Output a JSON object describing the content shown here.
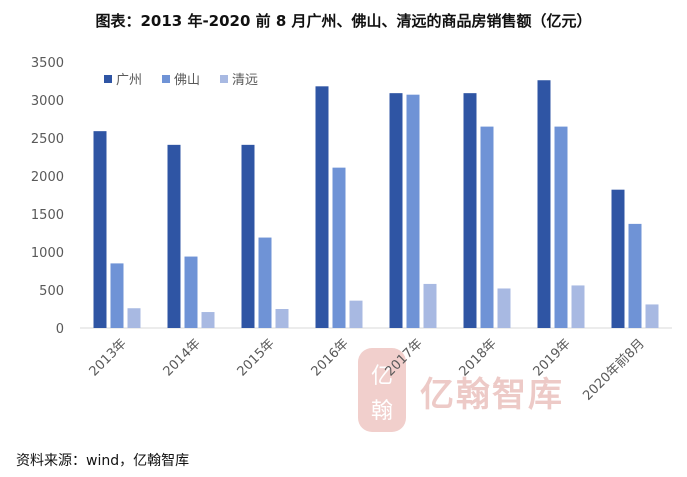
{
  "page": {
    "title": "图表：2013 年-2020 前 8 月广州、佛山、清远的商品房销售额（亿元）",
    "source": "资料来源：wind，亿翰智库",
    "watermark": "亿翰智库",
    "watermark_seal": "亿翰"
  },
  "chart_data": {
    "type": "bar",
    "title": "图表：2013 年-2020 前 8 月广州、佛山、清远的商品房销售额（亿元）",
    "xlabel": "",
    "ylabel": "",
    "categories": [
      "2013年",
      "2014年",
      "2015年",
      "2016年",
      "2017年",
      "2018年",
      "2019年",
      "2020年前8月"
    ],
    "yticks": [
      "0",
      "500",
      "1000",
      "1500",
      "2000",
      "2500",
      "3000",
      "3500"
    ],
    "ylim": [
      0,
      3500
    ],
    "grid": false,
    "legend": "top-left",
    "series": [
      {
        "name": "广州",
        "color": "#2f55a4",
        "values": [
          2590,
          2410,
          2410,
          3180,
          3090,
          3090,
          3260,
          1820
        ]
      },
      {
        "name": "佛山",
        "color": "#6f93d6",
        "values": [
          850,
          940,
          1190,
          2110,
          3070,
          2650,
          2650,
          1370
        ]
      },
      {
        "name": "清远",
        "color": "#a8b9e2",
        "values": [
          260,
          210,
          250,
          360,
          580,
          520,
          560,
          310
        ]
      }
    ]
  }
}
